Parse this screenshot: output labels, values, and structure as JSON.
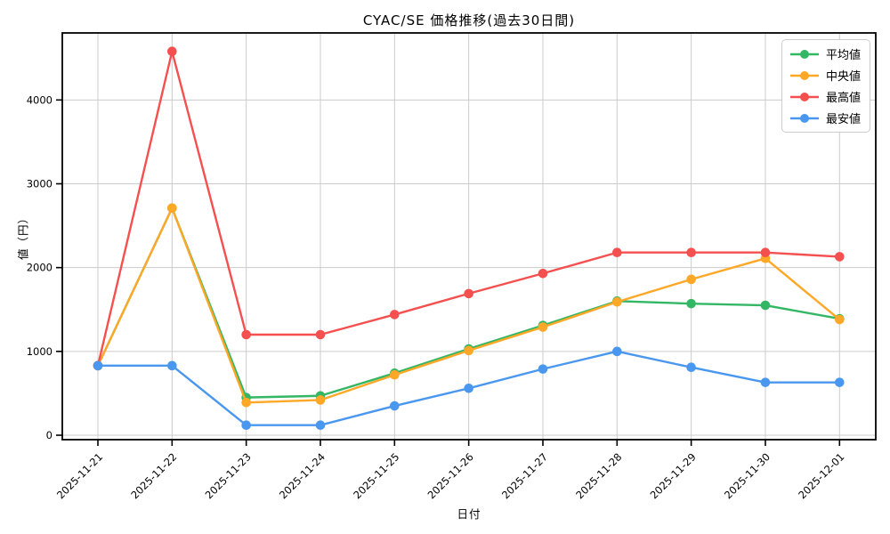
{
  "chart_data": {
    "type": "line",
    "title": "CYAC/SE 価格推移(過去30日間)",
    "xlabel": "日付",
    "ylabel": "値（円）",
    "x": [
      "2025-11-21",
      "2025-11-22",
      "2025-11-23",
      "2025-11-24",
      "2025-11-25",
      "2025-11-26",
      "2025-11-27",
      "2025-11-28",
      "2025-11-29",
      "2025-11-30",
      "2025-12-01"
    ],
    "series": [
      {
        "key": "avg",
        "name": "平均値",
        "color": "#34b764",
        "values": [
          830,
          2710,
          450,
          470,
          740,
          1030,
          1310,
          1600,
          1570,
          1550,
          1390
        ]
      },
      {
        "key": "median",
        "name": "中央値",
        "color": "#ffa726",
        "values": [
          830,
          2710,
          390,
          420,
          720,
          1010,
          1290,
          1590,
          1860,
          2110,
          1380
        ]
      },
      {
        "key": "max",
        "name": "最高値",
        "color": "#f4504f",
        "values": [
          830,
          4580,
          1200,
          1200,
          1440,
          1690,
          1930,
          2180,
          2180,
          2180,
          2130
        ]
      },
      {
        "key": "min",
        "name": "最安値",
        "color": "#4a97ef",
        "values": [
          830,
          830,
          120,
          120,
          350,
          560,
          790,
          1000,
          810,
          630,
          630
        ]
      }
    ],
    "yticks": [
      0,
      1000,
      2000,
      3000,
      4000
    ],
    "ylim": [
      -53,
      4800
    ],
    "grid": true,
    "legend_position": "upper right",
    "marker": "circle"
  },
  "colors": {
    "background": "#ffffff",
    "grid": "#cccccc",
    "spine": "#000000",
    "tick_text": "#000000",
    "legend_border": "#cccccc"
  }
}
